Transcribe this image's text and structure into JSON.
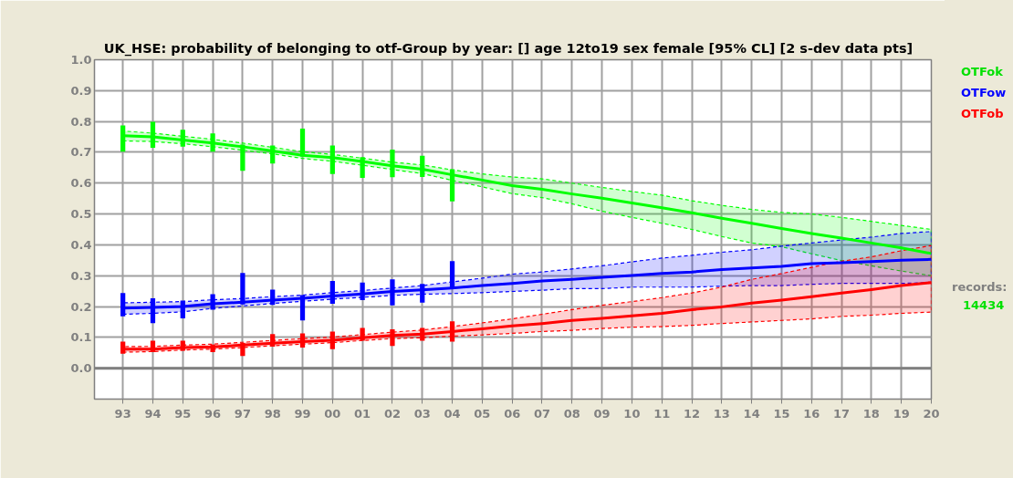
{
  "chart_data": {
    "type": "line",
    "title": "UK_HSE: probability of belonging to otf-Group by year: []  age 12to19 sex female  [95% CL] [2 s-dev data pts]",
    "categories": [
      "93",
      "94",
      "95",
      "96",
      "97",
      "98",
      "99",
      "00",
      "01",
      "02",
      "03",
      "04",
      "05",
      "06",
      "07",
      "08",
      "09",
      "10",
      "11",
      "12",
      "13",
      "14",
      "15",
      "16",
      "17",
      "18",
      "19",
      "20"
    ],
    "ylim": [
      -0.1,
      1.0
    ],
    "yticks": [
      {
        "value": 0,
        "label": "0.0"
      },
      0.1,
      0.2,
      0.3,
      0.4,
      0.5,
      0.6,
      0.7,
      0.8,
      0.9,
      {
        "value": 1,
        "label": "1.0"
      }
    ],
    "grid": true,
    "legend": "top right",
    "marker": "none",
    "line_style": "solid",
    "ref_lines": [
      {
        "axis": "y",
        "value": 0,
        "color": "#808080"
      }
    ],
    "annotations": [
      "records:",
      "14434"
    ],
    "series": [
      {
        "name": "OTFok",
        "color": "#00ff00",
        "values": [
          0.754,
          0.75,
          0.74,
          0.73,
          0.718,
          0.704,
          0.69,
          0.683,
          0.67,
          0.656,
          0.645,
          0.627,
          0.61,
          0.592,
          0.58,
          0.565,
          0.551,
          0.536,
          0.52,
          0.504,
          0.486,
          0.47,
          0.453,
          0.437,
          0.422,
          0.406,
          0.39,
          0.372
        ],
        "upper": [
          0.769,
          0.762,
          0.752,
          0.742,
          0.73,
          0.716,
          0.702,
          0.693,
          0.681,
          0.668,
          0.659,
          0.643,
          0.63,
          0.62,
          0.614,
          0.6,
          0.586,
          0.573,
          0.561,
          0.543,
          0.528,
          0.515,
          0.505,
          0.5,
          0.489,
          0.476,
          0.463,
          0.45
        ],
        "lower": [
          0.737,
          0.735,
          0.728,
          0.718,
          0.707,
          0.695,
          0.68,
          0.671,
          0.658,
          0.644,
          0.631,
          0.609,
          0.588,
          0.566,
          0.553,
          0.533,
          0.509,
          0.489,
          0.47,
          0.45,
          0.427,
          0.406,
          0.394,
          0.371,
          0.349,
          0.332,
          0.315,
          0.3
        ]
      },
      {
        "name": "OTFow",
        "color": "#0000ff",
        "values": [
          0.195,
          0.197,
          0.2,
          0.209,
          0.214,
          0.221,
          0.227,
          0.234,
          0.241,
          0.249,
          0.254,
          0.26,
          0.268,
          0.275,
          0.283,
          0.288,
          0.295,
          0.301,
          0.307,
          0.312,
          0.32,
          0.325,
          0.33,
          0.339,
          0.342,
          0.346,
          0.35,
          0.353
        ],
        "upper": [
          0.212,
          0.214,
          0.216,
          0.222,
          0.226,
          0.232,
          0.237,
          0.245,
          0.252,
          0.26,
          0.268,
          0.28,
          0.292,
          0.305,
          0.312,
          0.322,
          0.332,
          0.345,
          0.357,
          0.366,
          0.376,
          0.384,
          0.396,
          0.406,
          0.416,
          0.425,
          0.437,
          0.443
        ],
        "lower": [
          0.175,
          0.178,
          0.183,
          0.194,
          0.202,
          0.21,
          0.217,
          0.224,
          0.23,
          0.236,
          0.24,
          0.242,
          0.245,
          0.249,
          0.253,
          0.258,
          0.258,
          0.263,
          0.263,
          0.263,
          0.266,
          0.268,
          0.268,
          0.272,
          0.275,
          0.275,
          0.275,
          0.278
        ]
      },
      {
        "name": "OTFob",
        "color": "#ff0000",
        "values": [
          0.062,
          0.062,
          0.067,
          0.069,
          0.075,
          0.081,
          0.086,
          0.091,
          0.099,
          0.106,
          0.111,
          0.119,
          0.128,
          0.137,
          0.145,
          0.155,
          0.162,
          0.17,
          0.178,
          0.19,
          0.199,
          0.211,
          0.221,
          0.232,
          0.244,
          0.255,
          0.268,
          0.278
        ],
        "upper": [
          0.07,
          0.071,
          0.075,
          0.078,
          0.084,
          0.09,
          0.096,
          0.101,
          0.109,
          0.117,
          0.124,
          0.135,
          0.147,
          0.16,
          0.175,
          0.19,
          0.204,
          0.216,
          0.229,
          0.244,
          0.263,
          0.288,
          0.307,
          0.327,
          0.347,
          0.361,
          0.381,
          0.398
        ],
        "lower": [
          0.052,
          0.054,
          0.059,
          0.062,
          0.067,
          0.073,
          0.078,
          0.083,
          0.09,
          0.096,
          0.099,
          0.104,
          0.108,
          0.113,
          0.119,
          0.123,
          0.129,
          0.133,
          0.135,
          0.139,
          0.145,
          0.15,
          0.155,
          0.16,
          0.168,
          0.172,
          0.178,
          0.182
        ]
      },
      {
        "type": "bar",
        "color": "#00ff00",
        "base": [
          0.702,
          0.715,
          0.718,
          0.702,
          0.64,
          0.664,
          0.686,
          0.63,
          0.617,
          0.619,
          0.62,
          0.541,
          null,
          null,
          null,
          null,
          null,
          null,
          null,
          null,
          null,
          null,
          null,
          null,
          null,
          null,
          null,
          null
        ],
        "values": [
          0.085,
          0.084,
          0.055,
          0.059,
          0.085,
          0.058,
          0.091,
          0.092,
          0.067,
          0.09,
          0.069,
          0.104,
          null,
          null,
          null,
          null,
          null,
          null,
          null,
          null,
          null,
          null,
          null,
          null,
          null,
          null,
          null,
          null
        ]
      },
      {
        "type": "bar",
        "color": "#0000ff",
        "base": [
          0.168,
          0.146,
          0.162,
          0.19,
          0.207,
          0.205,
          0.155,
          0.209,
          0.221,
          0.204,
          0.213,
          0.26,
          null,
          null,
          null,
          null,
          null,
          null,
          null,
          null,
          null,
          null,
          null,
          null,
          null,
          null,
          null,
          null
        ],
        "values": [
          0.076,
          0.081,
          0.057,
          0.05,
          0.102,
          0.05,
          0.082,
          0.074,
          0.057,
          0.084,
          0.06,
          0.087,
          null,
          null,
          null,
          null,
          null,
          null,
          null,
          null,
          null,
          null,
          null,
          null,
          null,
          null,
          null,
          null
        ]
      },
      {
        "type": "bar",
        "color": "#ff0000",
        "base": [
          0.047,
          0.052,
          0.057,
          0.052,
          0.04,
          0.07,
          0.067,
          0.062,
          0.089,
          0.072,
          0.089,
          0.086,
          null,
          null,
          null,
          null,
          null,
          null,
          null,
          null,
          null,
          null,
          null,
          null,
          null,
          null,
          null,
          null
        ],
        "values": [
          0.039,
          0.037,
          0.032,
          0.025,
          0.042,
          0.041,
          0.046,
          0.057,
          0.042,
          0.054,
          0.042,
          0.066,
          null,
          null,
          null,
          null,
          null,
          null,
          null,
          null,
          null,
          null,
          null,
          null,
          null,
          null,
          null,
          null
        ]
      }
    ]
  }
}
